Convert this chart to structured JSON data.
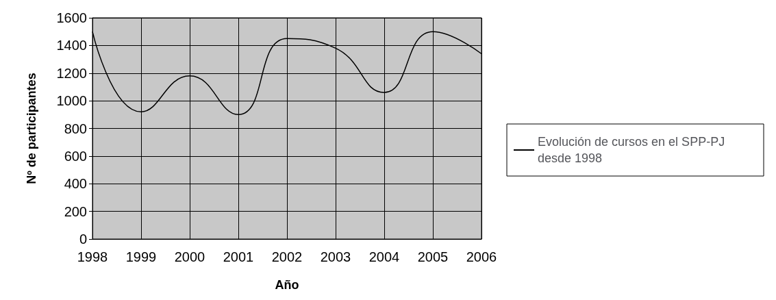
{
  "chart_data": {
    "type": "line",
    "xlabel": "Año",
    "ylabel": "Nº de participantes",
    "categories": [
      "1998",
      "1999",
      "2000",
      "2001",
      "2002",
      "2003",
      "2004",
      "2005",
      "2006"
    ],
    "series": [
      {
        "name": "Evolución de cursos en el SPP-PJ desde 1998",
        "color": "#000000",
        "values": [
          1500,
          920,
          1180,
          900,
          1450,
          1380,
          1060,
          1500,
          1340
        ]
      }
    ],
    "ylim": [
      0,
      1600
    ],
    "yticks": [
      0,
      200,
      400,
      600,
      800,
      1000,
      1200,
      1400,
      1600
    ],
    "grid": true,
    "legend": "right",
    "marker": "none",
    "line_style": "solid"
  }
}
